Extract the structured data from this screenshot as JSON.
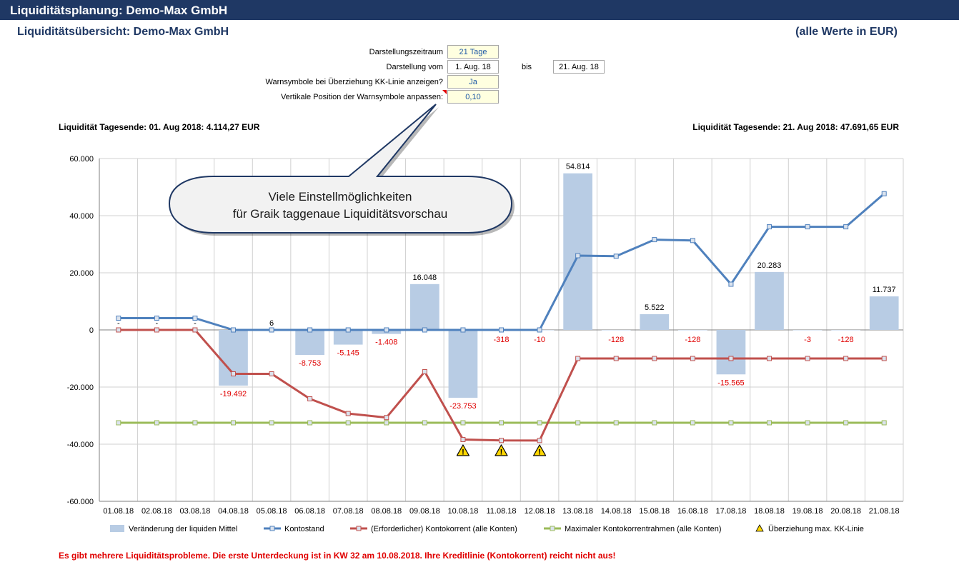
{
  "header": {
    "title": "Liquiditätsplanung: Demo-Max GmbH",
    "subtitle": "Liquiditätsübersicht: Demo-Max GmbH",
    "units": "(alle Werte in EUR)"
  },
  "settings": {
    "period_label": "Darstellungszeitraum",
    "period_value": "21 Tage",
    "from_label": "Darstellung vom",
    "from_value": "1. Aug. 18",
    "to_label": "bis",
    "to_value": "21. Aug. 18",
    "warn_label": "Warnsymbole bei Überziehung KK-Linie anzeigen?",
    "warn_value": "Ja",
    "pos_label": "Vertikale Position der Warnsymbole anpassen:",
    "pos_value": "0,10"
  },
  "summary": {
    "start": "Liquidität Tagesende: 01. Aug 2018: 4.114,27 EUR",
    "end": "Liquidität Tagesende: 21. Aug 2018: 47.691,65 EUR"
  },
  "callout": {
    "line1": "Viele Einstellmöglichkeiten",
    "line2": "für Graik taggenaue Liquiditätsvorschau"
  },
  "warning_message": "Es gibt mehrere Liquiditätsprobleme. Die erste Unterdeckung ist in KW 32 am 10.08.2018. Ihre Kreditlinie (Kontokorrent) reicht nicht aus!",
  "colors": {
    "bar": "#b8cce4",
    "konto": "#4f81bd",
    "kk": "#c0504d",
    "kk_max": "#9bbb59",
    "warn": "#ffd700",
    "neg_label": "#e00000"
  },
  "chart_data": {
    "type": "bar",
    "categories": [
      "01.08.18",
      "02.08.18",
      "03.08.18",
      "04.08.18",
      "05.08.18",
      "06.08.18",
      "07.08.18",
      "08.08.18",
      "09.08.18",
      "10.08.18",
      "11.08.18",
      "12.08.18",
      "13.08.18",
      "14.08.18",
      "15.08.18",
      "16.08.18",
      "17.08.18",
      "18.08.18",
      "19.08.18",
      "20.08.18",
      "21.08.18"
    ],
    "ylim": [
      -60000,
      60000
    ],
    "yticks": [
      {
        "v": 60000,
        "label": "60.000"
      },
      {
        "v": 40000,
        "label": "40.000"
      },
      {
        "v": 20000,
        "label": "20.000"
      },
      {
        "v": 0,
        "label": "0"
      },
      {
        "v": -20000,
        "label": "-20.000"
      },
      {
        "v": -40000,
        "label": "-40.000"
      },
      {
        "v": -60000,
        "label": "-60.000"
      }
    ],
    "grid": true,
    "legend_position": "bottom",
    "series": [
      {
        "name": "Veränderung der liquiden Mittel",
        "kind": "bar",
        "values": [
          0,
          0,
          0,
          -19492,
          6,
          -8753,
          -5145,
          -1408,
          16048,
          -23753,
          -318,
          -10,
          54814,
          -128,
          5522,
          -128,
          -15565,
          20283,
          -3,
          -128,
          11737
        ],
        "labels": [
          "-",
          "-",
          "-",
          "-19.492",
          "6",
          "-8.753",
          "-5.145",
          "-1.408",
          "16.048",
          "-23.753",
          "-318",
          "-10",
          "54.814",
          "-128",
          "5.522",
          "-128",
          "-15.565",
          "20.283",
          "-3",
          "-128",
          "11.737"
        ]
      },
      {
        "name": "Kontostand",
        "kind": "line",
        "values": [
          4114,
          4114,
          4114,
          0,
          0,
          0,
          0,
          0,
          0,
          0,
          0,
          0,
          26000,
          25800,
          31600,
          31300,
          16000,
          36100,
          36100,
          36100,
          47692
        ]
      },
      {
        "name": "(Erforderlicher) Kontokorrent (alle Konten)",
        "kind": "line",
        "values": [
          0,
          0,
          0,
          -15378,
          -15372,
          -24125,
          -29270,
          -30678,
          -14630,
          -38383,
          -38701,
          -38711,
          -10000,
          -10000,
          -10000,
          -10000,
          -10000,
          -10000,
          -10000,
          -10000,
          -10000
        ]
      },
      {
        "name": "Maximaler Kontokorrentrahmen (alle Konten)",
        "kind": "line",
        "values": [
          -32500,
          -32500,
          -32500,
          -32500,
          -32500,
          -32500,
          -32500,
          -32500,
          -32500,
          -32500,
          -32500,
          -32500,
          -32500,
          -32500,
          -32500,
          -32500,
          -32500,
          -32500,
          -32500,
          -32500,
          -32500
        ]
      },
      {
        "name": "Überziehung max. KK-Linie",
        "kind": "marker",
        "days": [
          "10.08.18",
          "11.08.18",
          "12.08.18"
        ]
      }
    ]
  }
}
